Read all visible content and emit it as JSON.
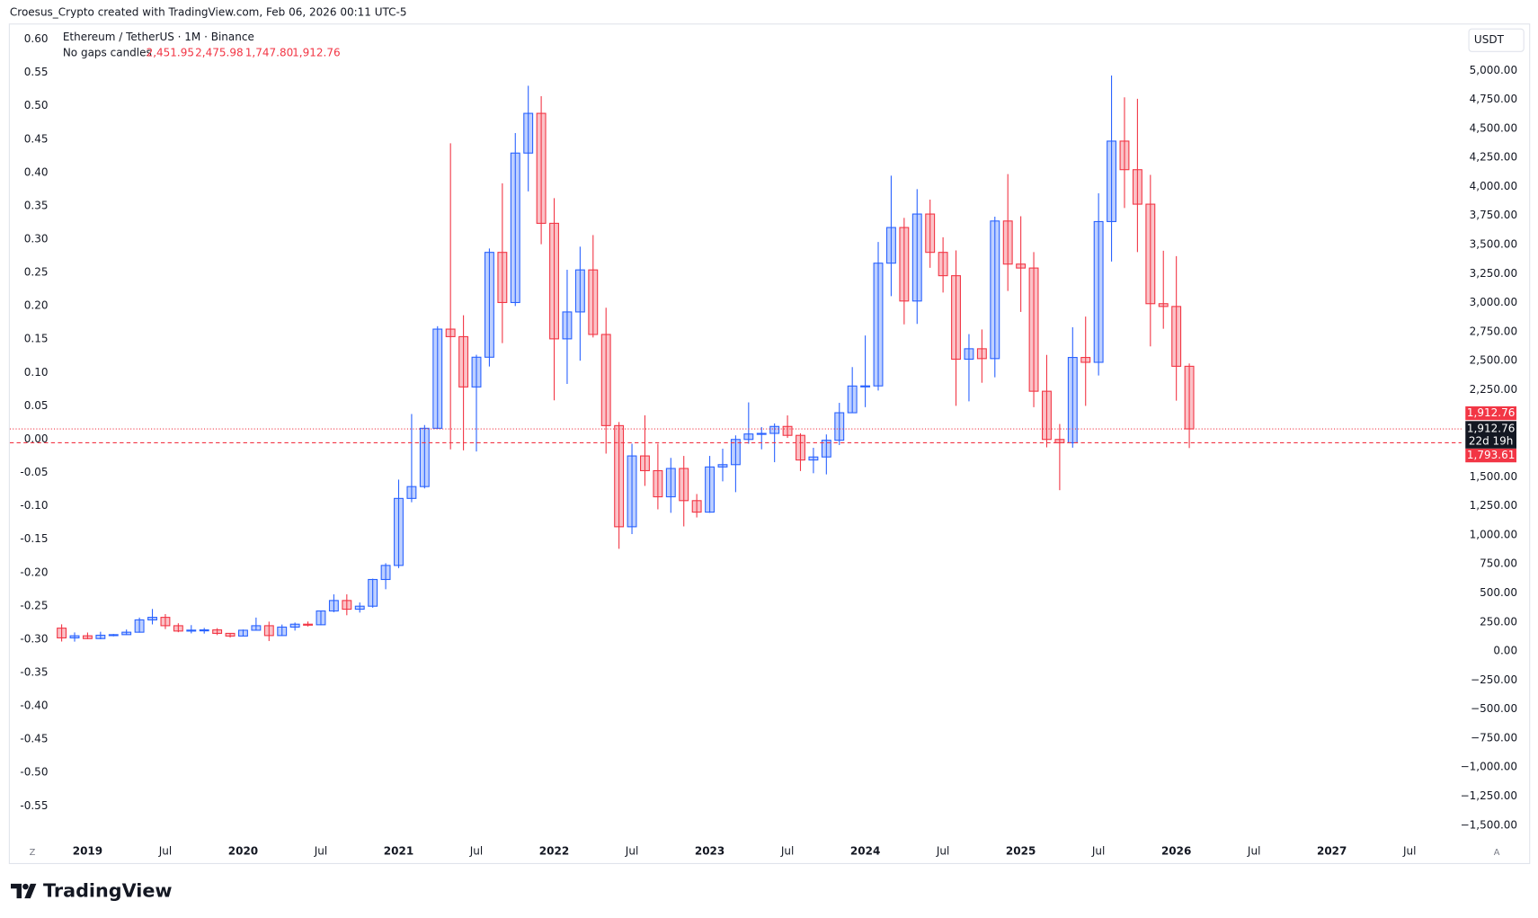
{
  "chart_data": {
    "type": "candlestick",
    "attribution": "Croesus_Crypto created with TradingView.com, Feb 06, 2026 00:11 UTC-5",
    "title": "Ethereum / TetherUS · 1M · Binance",
    "subtitle": "No gaps candles",
    "legend_labels": [
      "2,451.95",
      "2,475.98",
      "1,747.80",
      "1,912.76"
    ],
    "ylabel": "USDT",
    "brand": "TradingView",
    "buttons": [
      "Z",
      "A"
    ],
    "countdown": "22d 19h",
    "up_color": "#2962ff",
    "down_color": "#f23645",
    "grid": false,
    "x": [
      "2018-11",
      "2018-12",
      "2019-01",
      "2019-02",
      "2019-03",
      "2019-04",
      "2019-05",
      "2019-06",
      "2019-07",
      "2019-08",
      "2019-09",
      "2019-10",
      "2019-11",
      "2019-12",
      "2020-01",
      "2020-02",
      "2020-03",
      "2020-04",
      "2020-05",
      "2020-06",
      "2020-07",
      "2020-08",
      "2020-09",
      "2020-10",
      "2020-11",
      "2020-12",
      "2021-01",
      "2021-02",
      "2021-03",
      "2021-04",
      "2021-05",
      "2021-06",
      "2021-07",
      "2021-08",
      "2021-09",
      "2021-10",
      "2021-11",
      "2021-12",
      "2022-01",
      "2022-02",
      "2022-03",
      "2022-04",
      "2022-05",
      "2022-06",
      "2022-07",
      "2022-08",
      "2022-09",
      "2022-10",
      "2022-11",
      "2022-12",
      "2023-01",
      "2023-02",
      "2023-03",
      "2023-04",
      "2023-05",
      "2023-06",
      "2023-07",
      "2023-08",
      "2023-09",
      "2023-10",
      "2023-11",
      "2023-12",
      "2024-01",
      "2024-02",
      "2024-03",
      "2024-04",
      "2024-05",
      "2024-06",
      "2024-07",
      "2024-08",
      "2024-09",
      "2024-10",
      "2024-11",
      "2024-12",
      "2025-01",
      "2025-02",
      "2025-03",
      "2025-04",
      "2025-05",
      "2025-06",
      "2025-07",
      "2025-08",
      "2025-09",
      "2025-10",
      "2025-11",
      "2025-12",
      "2026-01",
      "2026-02"
    ],
    "open": [
      197,
      113,
      131,
      107,
      136,
      141,
      162,
      268,
      290,
      218,
      172,
      180,
      182,
      152,
      129,
      179,
      218,
      133,
      206,
      231,
      226,
      345,
      435,
      360,
      386,
      616,
      737,
      1314,
      1416,
      1918,
      2772,
      2707,
      2274,
      2530,
      3433,
      3001,
      4288,
      4630,
      3683,
      2688,
      2920,
      3282,
      2726,
      1941,
      1070,
      1680,
      1553,
      1328,
      1572,
      1295,
      1196,
      1585,
      1605,
      1822,
      1869,
      1874,
      1934,
      1857,
      1645,
      1671,
      1815,
      2052,
      2282,
      2283,
      3340,
      3647,
      3014,
      3763,
      3433,
      3232,
      2513,
      2603,
      2518,
      3703,
      3332,
      3298,
      2237,
      1822,
      1793,
      2528,
      2486,
      3698,
      4391,
      4145,
      3848,
      2991,
      2967,
      2451.95
    ],
    "high": [
      230,
      160,
      159,
      166,
      147,
      185,
      288,
      362,
      318,
      239,
      223,
      199,
      197,
      154,
      185,
      288,
      253,
      228,
      245,
      254,
      346,
      488,
      488,
      418,
      623,
      756,
      1476,
      2041,
      1946,
      2797,
      4372,
      2891,
      2551,
      3466,
      4028,
      4460,
      4868,
      4778,
      3900,
      3283,
      3482,
      3582,
      2956,
      1972,
      1785,
      2030,
      1785,
      1663,
      1680,
      1352,
      1680,
      1742,
      1857,
      2141,
      1928,
      1960,
      2029,
      1875,
      1750,
      1865,
      2137,
      2445,
      2717,
      3522,
      4093,
      3730,
      3977,
      3887,
      3563,
      3450,
      2729,
      2769,
      3740,
      4107,
      3744,
      3435,
      2550,
      1955,
      2788,
      2880,
      3941,
      4956,
      4768,
      4755,
      4100,
      3447,
      3400,
      2475.98
    ],
    "low": [
      82,
      81,
      102,
      101,
      126,
      138,
      158,
      229,
      189,
      162,
      152,
      150,
      137,
      116,
      126,
      178,
      86,
      130,
      176,
      211,
      222,
      334,
      308,
      331,
      373,
      532,
      714,
      1281,
      1400,
      1912,
      1737,
      1728,
      1718,
      2450,
      2651,
      2971,
      3958,
      3503,
      2159,
      2300,
      2500,
      2700,
      1700,
      880,
      1007,
      1422,
      1220,
      1190,
      1073,
      1150,
      1190,
      1461,
      1368,
      1785,
      1737,
      1626,
      1835,
      1550,
      1531,
      1521,
      1774,
      2050,
      2100,
      2243,
      3056,
      2813,
      2817,
      3300,
      3087,
      2111,
      2150,
      2310,
      2357,
      3100,
      2920,
      2100,
      1754,
      1385,
      1751,
      2111,
      2373,
      3354,
      3815,
      3435,
      2623,
      2775,
      2156,
      1747.8
    ],
    "close": [
      113,
      131,
      107,
      136,
      141,
      162,
      268,
      290,
      218,
      172,
      180,
      182,
      152,
      129,
      179,
      218,
      133,
      206,
      231,
      226,
      345,
      435,
      360,
      386,
      616,
      737,
      1314,
      1416,
      1918,
      2772,
      2707,
      2274,
      2530,
      3433,
      3001,
      4288,
      4630,
      3683,
      2688,
      2920,
      3282,
      2726,
      1941,
      1070,
      1680,
      1553,
      1328,
      1572,
      1295,
      1196,
      1585,
      1605,
      1822,
      1869,
      1874,
      1934,
      1857,
      1645,
      1671,
      1815,
      2052,
      2282,
      2283,
      3340,
      3647,
      3014,
      3763,
      3433,
      3232,
      2513,
      2603,
      2518,
      3703,
      3332,
      3298,
      2237,
      1822,
      1793,
      2528,
      2486,
      3698,
      4391,
      4145,
      3848,
      2991,
      2967,
      2451.95,
      1912.76
    ],
    "price_lines": [
      {
        "value": 1912.76,
        "label": "1,912.76",
        "color": "#f23645",
        "style": "dotted"
      },
      {
        "value": 1793.61,
        "label": "1,793.61",
        "color": "#f23645",
        "style": "dashed"
      }
    ],
    "xlim": [
      "2018-07",
      "2027-11"
    ],
    "xticks": [
      {
        "value": "2019-01",
        "label": "2019"
      },
      {
        "value": "2019-07",
        "label": "Jul"
      },
      {
        "value": "2020-01",
        "label": "2020"
      },
      {
        "value": "2020-07",
        "label": "Jul"
      },
      {
        "value": "2021-01",
        "label": "2021"
      },
      {
        "value": "2021-07",
        "label": "Jul"
      },
      {
        "value": "2022-01",
        "label": "2022"
      },
      {
        "value": "2022-07",
        "label": "Jul"
      },
      {
        "value": "2023-01",
        "label": "2023"
      },
      {
        "value": "2023-07",
        "label": "Jul"
      },
      {
        "value": "2024-01",
        "label": "2024"
      },
      {
        "value": "2024-07",
        "label": "Jul"
      },
      {
        "value": "2025-01",
        "label": "2025"
      },
      {
        "value": "2025-07",
        "label": "Jul"
      },
      {
        "value": "2026-01",
        "label": "2026"
      },
      {
        "value": "2026-07",
        "label": "Jul"
      },
      {
        "value": "2027-01",
        "label": "2027"
      },
      {
        "value": "2027-07",
        "label": "Jul"
      }
    ],
    "ylim": [
      -1615,
      5395
    ],
    "yticks": [
      {
        "value": 5000,
        "label": "5,000.00"
      },
      {
        "value": 4750,
        "label": "4,750.00"
      },
      {
        "value": 4500,
        "label": "4,500.00"
      },
      {
        "value": 4250,
        "label": "4,250.00"
      },
      {
        "value": 4000,
        "label": "4,000.00"
      },
      {
        "value": 3750,
        "label": "3,750.00"
      },
      {
        "value": 3500,
        "label": "3,500.00"
      },
      {
        "value": 3250,
        "label": "3,250.00"
      },
      {
        "value": 3000,
        "label": "3,000.00"
      },
      {
        "value": 2750,
        "label": "2,750.00"
      },
      {
        "value": 2500,
        "label": "2,500.00"
      },
      {
        "value": 2250,
        "label": "2,250.00"
      },
      {
        "value": 1500,
        "label": "1,500.00"
      },
      {
        "value": 1250,
        "label": "1,250.00"
      },
      {
        "value": 1000,
        "label": "1,000.00"
      },
      {
        "value": 750,
        "label": "750.00"
      },
      {
        "value": 500,
        "label": "500.00"
      },
      {
        "value": 250,
        "label": "250.00"
      },
      {
        "value": 0,
        "label": "0.00"
      },
      {
        "value": -250,
        "label": "−250.00"
      },
      {
        "value": -500,
        "label": "−500.00"
      },
      {
        "value": -750,
        "label": "−750.00"
      },
      {
        "value": -1000,
        "label": "−1,000.00"
      },
      {
        "value": -1250,
        "label": "−1,250.00"
      },
      {
        "value": -1500,
        "label": "−1,500.00"
      }
    ],
    "y2lim": [
      -0.599,
      0.622
    ],
    "y2ticks": [
      {
        "value": 0.6,
        "label": "0.60"
      },
      0.55,
      {
        "value": 0.5,
        "label": "0.50"
      },
      0.45,
      {
        "value": 0.4,
        "label": "0.40"
      },
      0.35,
      {
        "value": 0.3,
        "label": "0.30"
      },
      0.25,
      {
        "value": 0.2,
        "label": "0.20"
      },
      0.15,
      {
        "value": 0.1,
        "label": "0.10"
      },
      0.05,
      {
        "value": 0,
        "label": "0.00"
      },
      -0.05,
      {
        "value": -0.1,
        "label": "-0.10"
      },
      -0.15,
      {
        "value": -0.2,
        "label": "-0.20"
      },
      -0.25,
      {
        "value": -0.3,
        "label": "-0.30"
      },
      -0.35,
      {
        "value": -0.4,
        "label": "-0.40"
      },
      -0.45,
      {
        "value": -0.5,
        "label": "-0.50"
      },
      -0.55
    ]
  }
}
